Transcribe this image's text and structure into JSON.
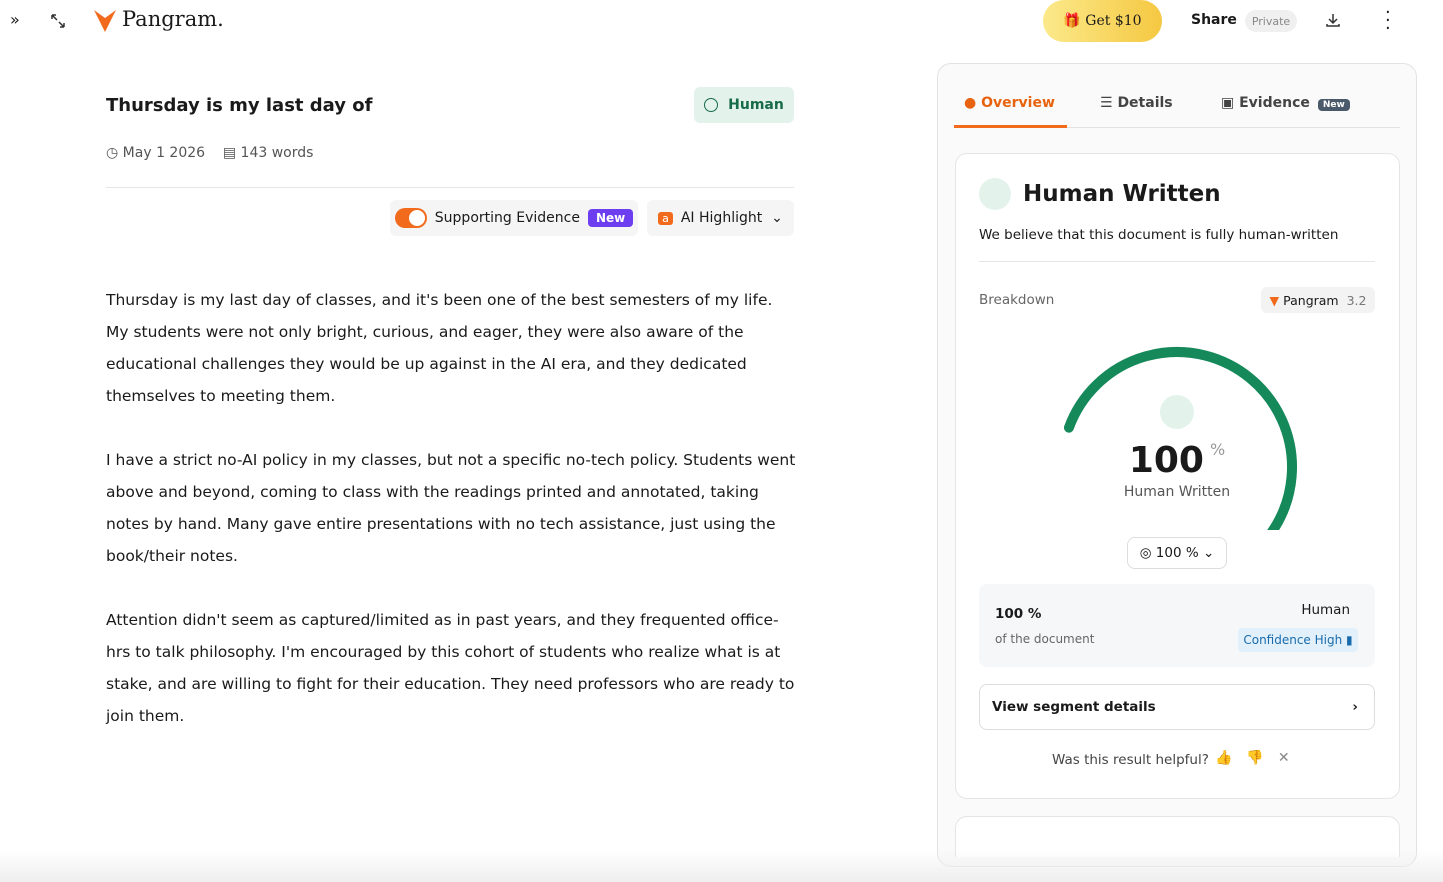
{
  "topbar": {
    "brand": "Pangram.",
    "promo": "Get $10",
    "share": "Share",
    "privacy": "Private"
  },
  "document": {
    "title": "Thursday is my last day of",
    "badge": "Human",
    "date": "May 1 2026",
    "words": "143 words",
    "toggle": "Supporting Evidence",
    "toggle_tag": "New",
    "highlight": "AI Highlight",
    "paragraphs": [
      "Thursday is my last day of classes, and it's been one of the best semesters of my life. My students were not only bright, curious, and eager, they were also aware of the educational challenges they would be up against in the AI era, and they dedicated themselves to meeting them.",
      "I have a strict no-AI policy in my classes, but not a specific no-tech policy. Students went above and beyond, coming to class with the readings printed and annotated, taking notes by hand. Many gave entire presentations with no tech assistance, just using the book/their notes.",
      "Attention didn't seem as captured/limited as in past years, and they frequented office-hrs to talk philosophy. I'm encouraged by this cohort of students who realize what is at stake, and are willing to fight for their education. They need professors who are ready to join them."
    ]
  },
  "panel": {
    "tabs": [
      {
        "label": "Overview"
      },
      {
        "label": "Details"
      },
      {
        "label": "Evidence",
        "tag": "New"
      }
    ],
    "heading": "Human Written",
    "summary": "We believe that this document is fully human-written",
    "breakdown": "Breakdown",
    "model": "Pangram",
    "version": "3.2",
    "gauge": {
      "value": 100,
      "unit": "%",
      "label": "Human Written"
    },
    "selector": "100 %",
    "result": {
      "percent": "100 %",
      "caption": "of the document",
      "class": "Human",
      "confidence": "Confidence High"
    },
    "segment_link": "View segment details",
    "feedback": "Was this result helpful?"
  }
}
